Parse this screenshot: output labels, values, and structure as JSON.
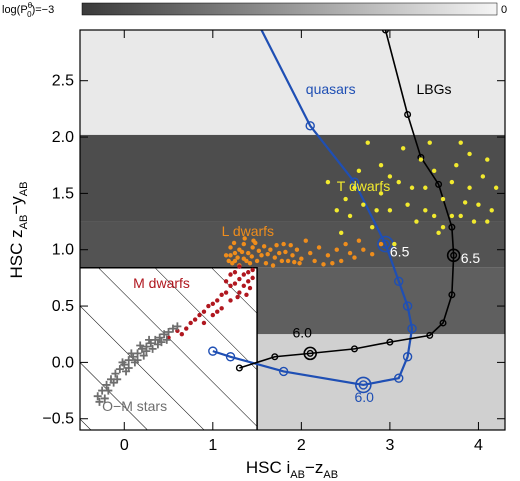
{
  "chart_data": {
    "type": "scatter",
    "colorbar": {
      "label_prefix": "log(P",
      "label_super": "θ",
      "label_sub": "0",
      "label_suffix": ")=−3",
      "max_label": "0",
      "min": -3,
      "max": 0
    },
    "xlabel": {
      "prefix": "HSC  i",
      "sub1": "AB",
      "mid": "−z",
      "sub2": "AB"
    },
    "ylabel": {
      "prefix": "HSC  z",
      "sub1": "AB",
      "mid": "−y",
      "sub2": "AB"
    },
    "xlim": [
      -0.5,
      4.3
    ],
    "ylim": [
      -0.6,
      2.95
    ],
    "xticks": [
      0,
      1,
      2,
      3,
      4
    ],
    "yticks": [
      -0.5,
      0.0,
      0.5,
      1.0,
      1.5,
      2.0,
      2.5
    ],
    "ytick_labels": [
      "−0.5",
      "0.0",
      "0.5",
      "1.0",
      "1.5",
      "2.0",
      "2.5"
    ],
    "xtick_labels": [
      "0",
      "1",
      "2",
      "3",
      "4"
    ],
    "selection_boundary": [
      [
        -0.5,
        0.84
      ],
      [
        1.5,
        0.84
      ],
      [
        1.5,
        -0.6
      ]
    ],
    "probability_map": {
      "bands": [
        {
          "x": [
            -0.5,
            4.3
          ],
          "y": [
            1.25,
            2.02
          ],
          "logP": -2.7
        },
        {
          "x": [
            -0.5,
            4.3
          ],
          "y": [
            0.84,
            1.25
          ],
          "logP": -2.6
        },
        {
          "x": [
            1.5,
            4.3
          ],
          "y": [
            0.25,
            0.84
          ],
          "logP": -2.4
        },
        {
          "x": [
            1.5,
            4.3
          ],
          "y": [
            -0.6,
            0.25
          ],
          "logP": -0.6
        },
        {
          "x": [
            -0.5,
            4.3
          ],
          "y": [
            2.02,
            2.95
          ],
          "logP": -0.2
        }
      ]
    },
    "annotations": [
      {
        "text": "quasars",
        "x": 2.05,
        "y": 2.38,
        "color": "#1f4fb4"
      },
      {
        "text": "LBGs",
        "x": 3.3,
        "y": 2.38,
        "color": "#000000"
      },
      {
        "text": "T dwarfs",
        "x": 2.4,
        "y": 1.52,
        "color": "#f2ea2e"
      },
      {
        "text": "L dwarfs",
        "x": 1.1,
        "y": 1.12,
        "color": "#ef8d1c"
      },
      {
        "text": "M dwarfs",
        "x": 0.1,
        "y": 0.66,
        "color": "#b0171f"
      },
      {
        "text": "O−M stars",
        "x": -0.25,
        "y": -0.43,
        "color": "#6e6e6e"
      },
      {
        "text": "6.5",
        "x": 3.0,
        "y": 0.94,
        "color": "#ffffff"
      },
      {
        "text": "6.5",
        "x": 3.8,
        "y": 0.88,
        "color": "#ffffff"
      },
      {
        "text": "6.0",
        "x": 1.9,
        "y": 0.22,
        "color": "#000000"
      },
      {
        "text": "6.0",
        "x": 2.6,
        "y": -0.35,
        "color": "#1f4fb4"
      }
    ],
    "series": [
      {
        "name": "quasars",
        "color": "#1f4fb4",
        "type": "line",
        "points": [
          [
            1.0,
            0.1
          ],
          [
            1.2,
            0.05
          ],
          [
            1.8,
            -0.08
          ],
          [
            2.7,
            -0.2
          ],
          [
            3.1,
            -0.14
          ],
          [
            3.2,
            0.05
          ],
          [
            3.25,
            0.3
          ],
          [
            3.2,
            0.5
          ],
          [
            3.1,
            0.72
          ],
          [
            2.95,
            1.05
          ],
          [
            2.6,
            1.6
          ],
          [
            2.1,
            2.1
          ]
        ],
        "extend_to": [
          1.55,
          2.95
        ],
        "markers": [
          [
            1.0,
            0.1
          ],
          [
            1.2,
            0.05
          ],
          [
            1.8,
            -0.08
          ],
          [
            2.7,
            -0.2
          ],
          [
            3.1,
            -0.14
          ],
          [
            3.2,
            0.05
          ],
          [
            3.25,
            0.3
          ],
          [
            3.2,
            0.5
          ],
          [
            3.1,
            0.72
          ],
          [
            2.95,
            1.05
          ],
          [
            2.6,
            1.6
          ],
          [
            2.1,
            2.1
          ]
        ],
        "highlighted": [
          [
            2.7,
            -0.2
          ],
          [
            2.95,
            1.05
          ]
        ]
      },
      {
        "name": "LBGs",
        "color": "#000000",
        "type": "line",
        "points": [
          [
            1.3,
            -0.05
          ],
          [
            1.7,
            0.05
          ],
          [
            2.1,
            0.08
          ],
          [
            2.6,
            0.12
          ],
          [
            3.0,
            0.18
          ],
          [
            3.45,
            0.24
          ],
          [
            3.6,
            0.35
          ],
          [
            3.7,
            0.6
          ],
          [
            3.72,
            0.95
          ],
          [
            3.7,
            1.2
          ],
          [
            3.55,
            1.58
          ],
          [
            3.35,
            1.82
          ],
          [
            3.2,
            2.2
          ],
          [
            2.95,
            2.95
          ]
        ],
        "markers": [
          [
            1.3,
            -0.05
          ],
          [
            1.7,
            0.05
          ],
          [
            2.1,
            0.08
          ],
          [
            2.6,
            0.12
          ],
          [
            3.0,
            0.18
          ],
          [
            3.45,
            0.24
          ],
          [
            3.6,
            0.35
          ],
          [
            3.7,
            0.6
          ],
          [
            3.72,
            0.95
          ],
          [
            3.7,
            1.2
          ],
          [
            3.55,
            1.58
          ],
          [
            3.35,
            1.82
          ],
          [
            3.2,
            2.2
          ],
          [
            2.95,
            2.95
          ]
        ],
        "highlighted": [
          [
            2.1,
            0.08
          ],
          [
            3.72,
            0.95
          ]
        ]
      },
      {
        "name": "T dwarfs",
        "color": "#f2ea2e",
        "type": "scatter",
        "points": [
          [
            2.4,
            1.35
          ],
          [
            2.5,
            1.45
          ],
          [
            2.6,
            1.55
          ],
          [
            2.55,
            1.3
          ],
          [
            2.7,
            1.4
          ],
          [
            2.8,
            1.2
          ],
          [
            2.9,
            1.5
          ],
          [
            3.0,
            1.35
          ],
          [
            3.1,
            1.6
          ],
          [
            3.2,
            1.4
          ],
          [
            3.3,
            1.25
          ],
          [
            3.4,
            1.55
          ],
          [
            3.5,
            1.7
          ],
          [
            3.6,
            1.45
          ],
          [
            3.7,
            1.6
          ],
          [
            3.8,
            1.3
          ],
          [
            3.9,
            1.55
          ],
          [
            4.0,
            1.4
          ],
          [
            4.1,
            1.8
          ],
          [
            4.15,
            1.35
          ],
          [
            3.75,
            1.75
          ],
          [
            3.45,
            1.95
          ],
          [
            3.9,
            1.85
          ],
          [
            4.05,
            1.65
          ],
          [
            2.65,
            1.7
          ],
          [
            2.9,
            1.75
          ],
          [
            3.15,
            1.9
          ],
          [
            3.5,
            1.3
          ],
          [
            3.6,
            1.2
          ],
          [
            3.95,
            1.25
          ],
          [
            4.2,
            1.55
          ],
          [
            2.3,
            1.6
          ],
          [
            2.45,
            1.15
          ],
          [
            3.35,
            1.8
          ],
          [
            3.85,
            1.42
          ],
          [
            3.55,
            1.15
          ],
          [
            2.75,
            1.95
          ],
          [
            3.05,
            1.05
          ],
          [
            3.25,
            1.55
          ],
          [
            4.1,
            1.25
          ],
          [
            3.7,
            1.3
          ],
          [
            3.0,
            1.65
          ],
          [
            2.85,
            1.35
          ],
          [
            3.4,
            1.35
          ],
          [
            3.8,
            1.95
          ]
        ]
      },
      {
        "name": "L dwarfs",
        "color": "#ef8d1c",
        "type": "scatter",
        "points": [
          [
            1.2,
            0.95
          ],
          [
            1.25,
            0.9
          ],
          [
            1.3,
            1.0
          ],
          [
            1.35,
            0.92
          ],
          [
            1.4,
            0.97
          ],
          [
            1.45,
            1.02
          ],
          [
            1.5,
            0.9
          ],
          [
            1.55,
            0.95
          ],
          [
            1.6,
            0.88
          ],
          [
            1.65,
            1.0
          ],
          [
            1.7,
            0.93
          ],
          [
            1.75,
            0.97
          ],
          [
            1.8,
            1.05
          ],
          [
            1.85,
            0.9
          ],
          [
            1.9,
            0.95
          ],
          [
            1.95,
            1.0
          ],
          [
            2.0,
            0.92
          ],
          [
            2.1,
            0.97
          ],
          [
            2.2,
            1.02
          ],
          [
            2.3,
            0.95
          ],
          [
            2.4,
            1.0
          ],
          [
            2.5,
            1.05
          ],
          [
            2.6,
            0.93
          ],
          [
            2.7,
            1.0
          ],
          [
            2.8,
            0.96
          ],
          [
            2.35,
            0.88
          ],
          [
            1.2,
            1.02
          ],
          [
            1.25,
            0.97
          ],
          [
            1.3,
            0.86
          ],
          [
            1.35,
            1.05
          ],
          [
            1.42,
            0.88
          ],
          [
            1.48,
            1.06
          ],
          [
            1.58,
            1.03
          ],
          [
            1.68,
            0.86
          ],
          [
            1.78,
            0.9
          ],
          [
            1.88,
            1.04
          ],
          [
            1.98,
            0.88
          ],
          [
            2.05,
            1.08
          ],
          [
            2.15,
            0.9
          ],
          [
            2.25,
            0.87
          ],
          [
            1.22,
            0.88
          ],
          [
            1.28,
            0.93
          ],
          [
            1.33,
            0.98
          ],
          [
            1.38,
            0.9
          ],
          [
            1.44,
            0.94
          ],
          [
            1.52,
            0.99
          ],
          [
            1.62,
            0.96
          ],
          [
            1.72,
            1.04
          ],
          [
            1.82,
            0.98
          ],
          [
            1.92,
            0.89
          ],
          [
            2.45,
            0.9
          ],
          [
            2.55,
            0.97
          ],
          [
            2.65,
            1.08
          ],
          [
            1.15,
            0.95
          ],
          [
            1.18,
            0.9
          ],
          [
            1.24,
            1.06
          ],
          [
            1.36,
            1.1
          ],
          [
            1.46,
            1.08
          ],
          [
            2.9,
            1.05
          ]
        ]
      },
      {
        "name": "M dwarfs",
        "color": "#b0171f",
        "type": "scatter",
        "points": [
          [
            0.5,
            0.22
          ],
          [
            0.6,
            0.28
          ],
          [
            0.7,
            0.3
          ],
          [
            0.8,
            0.38
          ],
          [
            0.85,
            0.42
          ],
          [
            0.9,
            0.45
          ],
          [
            0.95,
            0.5
          ],
          [
            1.0,
            0.52
          ],
          [
            1.05,
            0.55
          ],
          [
            1.1,
            0.6
          ],
          [
            1.15,
            0.62
          ],
          [
            1.2,
            0.68
          ],
          [
            1.25,
            0.7
          ],
          [
            1.3,
            0.74
          ],
          [
            1.35,
            0.78
          ],
          [
            1.4,
            0.8
          ],
          [
            1.45,
            0.82
          ],
          [
            1.3,
            0.62
          ],
          [
            1.2,
            0.55
          ],
          [
            1.1,
            0.48
          ],
          [
            1.35,
            0.68
          ],
          [
            1.4,
            0.72
          ],
          [
            1.25,
            0.8
          ],
          [
            1.15,
            0.72
          ],
          [
            0.9,
            0.35
          ],
          [
            0.75,
            0.35
          ],
          [
            1.05,
            0.45
          ],
          [
            1.45,
            0.75
          ],
          [
            1.3,
            0.85
          ],
          [
            1.2,
            0.78
          ],
          [
            0.65,
            0.25
          ],
          [
            1.0,
            0.42
          ],
          [
            1.38,
            0.6
          ],
          [
            1.28,
            0.58
          ],
          [
            1.42,
            0.66
          ]
        ]
      },
      {
        "name": "O−M stars",
        "color": "#6e6e6e",
        "type": "scatter",
        "points": [
          [
            -0.3,
            -0.3
          ],
          [
            -0.25,
            -0.25
          ],
          [
            -0.2,
            -0.2
          ],
          [
            -0.15,
            -0.15
          ],
          [
            -0.1,
            -0.1
          ],
          [
            -0.05,
            -0.06
          ],
          [
            0.0,
            -0.02
          ],
          [
            0.05,
            0.02
          ],
          [
            0.1,
            0.05
          ],
          [
            0.15,
            0.08
          ],
          [
            0.2,
            0.12
          ],
          [
            0.25,
            0.14
          ],
          [
            0.3,
            0.17
          ],
          [
            0.35,
            0.2
          ],
          [
            0.4,
            0.22
          ],
          [
            0.45,
            0.25
          ],
          [
            0.5,
            0.27
          ],
          [
            -0.28,
            -0.35
          ],
          [
            -0.18,
            -0.25
          ],
          [
            -0.08,
            -0.15
          ],
          [
            0.02,
            -0.08
          ],
          [
            0.12,
            0.0
          ],
          [
            0.22,
            0.06
          ],
          [
            0.32,
            0.12
          ],
          [
            0.42,
            0.18
          ],
          [
            -0.22,
            -0.32
          ],
          [
            -0.12,
            -0.18
          ],
          [
            0.08,
            0.08
          ],
          [
            0.18,
            0.15
          ],
          [
            0.28,
            0.2
          ],
          [
            0.38,
            0.16
          ],
          [
            0.48,
            0.2
          ],
          [
            0.55,
            0.3
          ],
          [
            0.6,
            0.32
          ],
          [
            -0.02,
            0.0
          ],
          [
            0.05,
            -0.05
          ],
          [
            0.15,
            0.02
          ],
          [
            0.25,
            0.1
          ]
        ]
      }
    ]
  }
}
